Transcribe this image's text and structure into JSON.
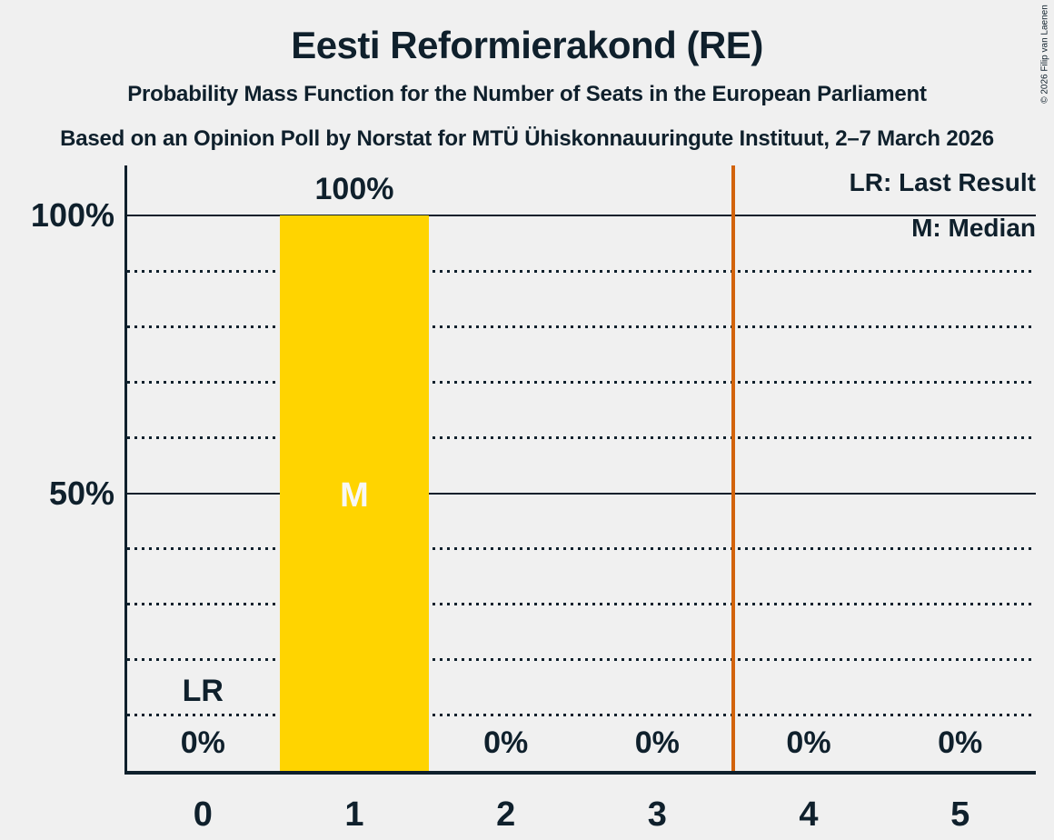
{
  "header": {
    "title": "Eesti Reformierakond (RE)",
    "subtitle1": "Probability Mass Function for the Number of Seats in the European Parliament",
    "subtitle2": "Based on an Opinion Poll by Norstat for MTÜ Ühiskonnauuringute Instituut, 2–7 March 2026"
  },
  "copyright": "© 2026 Filip van Laenen",
  "legend": {
    "lr_label": "LR: Last Result",
    "m_label": "M: Median"
  },
  "colors": {
    "background": "#F0F0F0",
    "text": "#0F202C",
    "bar": "#FFD400",
    "threshold_line": "#D2630C",
    "median_letter": "#F7F7F7"
  },
  "chart_data": {
    "type": "bar",
    "title": "Eesti Reformierakond (RE)",
    "subtitle": "Probability Mass Function for the Number of Seats in the European Parliament",
    "categories": [
      "0",
      "1",
      "2",
      "3",
      "4",
      "5"
    ],
    "values": [
      0,
      100,
      0,
      0,
      0,
      0
    ],
    "value_labels": [
      "0%",
      "100%",
      "0%",
      "0%",
      "0%",
      "0%"
    ],
    "xlabel": "",
    "ylabel": "",
    "ylim": [
      0,
      100
    ],
    "grid": "on",
    "legend_position": "top-right",
    "y_ticks": [
      {
        "percent": 100,
        "label": "100%"
      },
      {
        "percent": 50,
        "label": "50%"
      }
    ],
    "gridlines": {
      "solid_percents": [
        100,
        50
      ],
      "dotted_percents": [
        90,
        80,
        70,
        60,
        40,
        30,
        20,
        10
      ]
    },
    "median": {
      "category_index": 1,
      "label": "M"
    },
    "last_result": {
      "category_index": 0,
      "label": "LR"
    },
    "threshold_line_x": 3.5
  }
}
